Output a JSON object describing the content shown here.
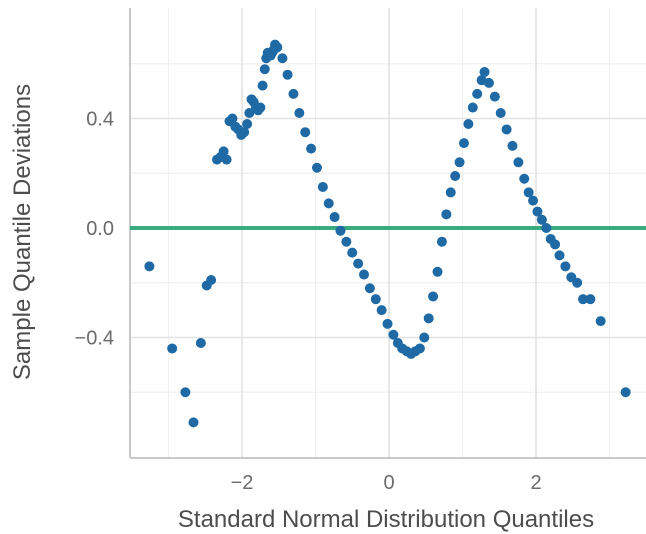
{
  "chart_data": {
    "type": "scatter",
    "title": "",
    "xlabel": "Standard Normal Distribution Quantiles",
    "ylabel": "Sample Quantile Deviations",
    "xlim": [
      -3.5,
      3.5
    ],
    "ylim": [
      -0.8,
      0.75
    ],
    "x_ticks": [
      -2,
      0,
      2
    ],
    "x_tick_labels": [
      "−2",
      "0",
      "2"
    ],
    "y_ticks": [
      -0.4,
      0.0,
      0.4
    ],
    "y_tick_labels": [
      "−0.4",
      "0.0",
      "0.4"
    ],
    "grid": true,
    "reference_line": {
      "y": 0.0,
      "color": "#3aaa80"
    },
    "point_color": "#1f6aa5",
    "series": [
      {
        "points": [
          [
            -3.26,
            -0.14
          ],
          [
            -2.95,
            -0.44
          ],
          [
            -2.77,
            -0.6
          ],
          [
            -2.66,
            -0.71
          ],
          [
            -2.56,
            -0.42
          ],
          [
            -2.48,
            -0.21
          ],
          [
            -2.42,
            -0.19
          ],
          [
            -2.34,
            0.25
          ],
          [
            -2.29,
            0.26
          ],
          [
            -2.25,
            0.28
          ],
          [
            -2.21,
            0.25
          ],
          [
            -2.17,
            0.39
          ],
          [
            -2.13,
            0.4
          ],
          [
            -2.09,
            0.37
          ],
          [
            -2.05,
            0.36
          ],
          [
            -2.01,
            0.34
          ],
          [
            -1.97,
            0.35
          ],
          [
            -1.93,
            0.38
          ],
          [
            -1.9,
            0.42
          ],
          [
            -1.87,
            0.47
          ],
          [
            -1.84,
            0.46
          ],
          [
            -1.81,
            0.44
          ],
          [
            -1.78,
            0.43
          ],
          [
            -1.75,
            0.44
          ],
          [
            -1.72,
            0.52
          ],
          [
            -1.69,
            0.58
          ],
          [
            -1.67,
            0.62
          ],
          [
            -1.65,
            0.64
          ],
          [
            -1.63,
            0.64
          ],
          [
            -1.61,
            0.63
          ],
          [
            -1.59,
            0.64
          ],
          [
            -1.57,
            0.65
          ],
          [
            -1.55,
            0.67
          ],
          [
            -1.52,
            0.66
          ],
          [
            -1.45,
            0.62
          ],
          [
            -1.38,
            0.56
          ],
          [
            -1.3,
            0.49
          ],
          [
            -1.22,
            0.42
          ],
          [
            -1.14,
            0.35
          ],
          [
            -1.06,
            0.29
          ],
          [
            -0.98,
            0.22
          ],
          [
            -0.9,
            0.15
          ],
          [
            -0.82,
            0.09
          ],
          [
            -0.74,
            0.04
          ],
          [
            -0.66,
            -0.01
          ],
          [
            -0.58,
            -0.05
          ],
          [
            -0.5,
            -0.09
          ],
          [
            -0.42,
            -0.13
          ],
          [
            -0.34,
            -0.17
          ],
          [
            -0.26,
            -0.22
          ],
          [
            -0.18,
            -0.26
          ],
          [
            -0.1,
            -0.3
          ],
          [
            -0.02,
            -0.35
          ],
          [
            0.06,
            -0.39
          ],
          [
            0.12,
            -0.42
          ],
          [
            0.18,
            -0.44
          ],
          [
            0.24,
            -0.45
          ],
          [
            0.3,
            -0.46
          ],
          [
            0.36,
            -0.45
          ],
          [
            0.42,
            -0.44
          ],
          [
            0.48,
            -0.4
          ],
          [
            0.54,
            -0.33
          ],
          [
            0.6,
            -0.25
          ],
          [
            0.66,
            -0.16
          ],
          [
            0.72,
            -0.05
          ],
          [
            0.78,
            0.05
          ],
          [
            0.84,
            0.13
          ],
          [
            0.9,
            0.19
          ],
          [
            0.96,
            0.24
          ],
          [
            1.02,
            0.31
          ],
          [
            1.08,
            0.38
          ],
          [
            1.14,
            0.44
          ],
          [
            1.2,
            0.49
          ],
          [
            1.26,
            0.54
          ],
          [
            1.3,
            0.57
          ],
          [
            1.36,
            0.53
          ],
          [
            1.44,
            0.48
          ],
          [
            1.52,
            0.42
          ],
          [
            1.6,
            0.36
          ],
          [
            1.68,
            0.3
          ],
          [
            1.76,
            0.24
          ],
          [
            1.84,
            0.18
          ],
          [
            1.9,
            0.13
          ],
          [
            1.96,
            0.1
          ],
          [
            2.02,
            0.06
          ],
          [
            2.08,
            0.03
          ],
          [
            2.14,
            0.0
          ],
          [
            2.2,
            -0.04
          ],
          [
            2.26,
            -0.06
          ],
          [
            2.32,
            -0.1
          ],
          [
            2.4,
            -0.14
          ],
          [
            2.48,
            -0.18
          ],
          [
            2.56,
            -0.2
          ],
          [
            2.64,
            -0.26
          ],
          [
            2.74,
            -0.26
          ],
          [
            2.88,
            -0.34
          ],
          [
            3.22,
            -0.6
          ]
        ]
      }
    ]
  }
}
